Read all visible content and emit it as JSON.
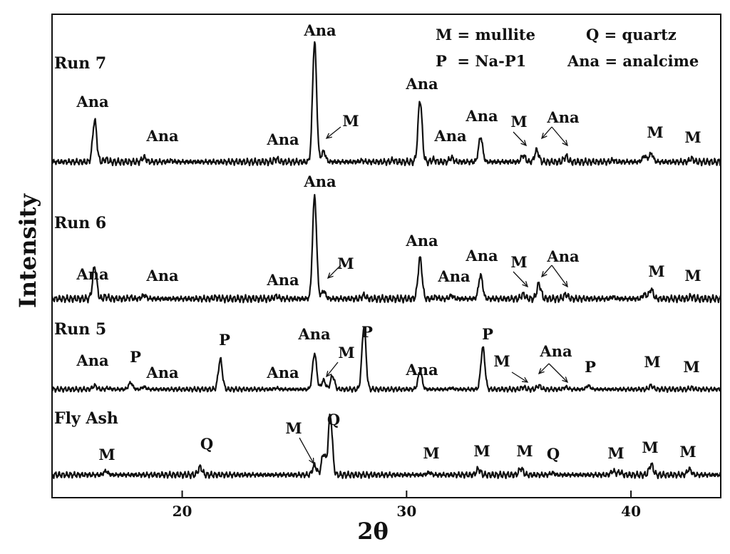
{
  "chart_data": {
    "type": "line",
    "title": "",
    "xlabel": "2θ",
    "ylabel": "Intensity",
    "xlim": [
      14.2,
      44
    ],
    "x_ticks": [
      20,
      30,
      40
    ],
    "legend": {
      "placement": "top-right",
      "entries": [
        "M = mullite",
        "Q = quartz",
        "P  = Na-P1",
        "Ana = analcime"
      ]
    },
    "series": [
      {
        "name": "Run 7",
        "peaks": [
          [
            16.1,
            1.0
          ],
          [
            16.6,
            0.06
          ],
          [
            18.3,
            0.11
          ],
          [
            19.5,
            0.03
          ],
          [
            24.2,
            0.07
          ],
          [
            25.9,
            2.9
          ],
          [
            26.3,
            0.25
          ],
          [
            28.0,
            0.03
          ],
          [
            29.4,
            0.04
          ],
          [
            30.6,
            1.5
          ],
          [
            31.2,
            0.05
          ],
          [
            32.0,
            0.1
          ],
          [
            33.3,
            0.6
          ],
          [
            35.2,
            0.16
          ],
          [
            35.8,
            0.28
          ],
          [
            37.1,
            0.13
          ],
          [
            39.2,
            0.04
          ],
          [
            40.6,
            0.14
          ],
          [
            40.9,
            0.2
          ],
          [
            42.7,
            0.08
          ]
        ],
        "labels": [
          {
            "text": "Ana",
            "x": 16.1
          },
          {
            "text": "Ana",
            "x": 18.3
          },
          {
            "text": "Ana",
            "x": 24.2
          },
          {
            "text": "Ana",
            "x": 25.9
          },
          {
            "text": "M",
            "x": 26.3
          },
          {
            "text": "Ana",
            "x": 30.6
          },
          {
            "text": "Ana",
            "x": 32.0
          },
          {
            "text": "Ana",
            "x": 33.3
          },
          {
            "text": "M",
            "x": 35.2
          },
          {
            "text": "Ana",
            "x": 35.8
          },
          {
            "text": "M",
            "x": 40.9
          },
          {
            "text": "M",
            "x": 42.7
          }
        ]
      },
      {
        "name": "Run 6",
        "peaks": [
          [
            16.1,
            0.75
          ],
          [
            16.6,
            0.05
          ],
          [
            17.7,
            0.03
          ],
          [
            18.3,
            0.08
          ],
          [
            21.5,
            0.03
          ],
          [
            24.2,
            0.06
          ],
          [
            25.9,
            2.4
          ],
          [
            26.3,
            0.18
          ],
          [
            28.1,
            0.08
          ],
          [
            30.6,
            0.95
          ],
          [
            31.3,
            0.04
          ],
          [
            32.0,
            0.07
          ],
          [
            33.3,
            0.55
          ],
          [
            35.2,
            0.1
          ],
          [
            35.9,
            0.35
          ],
          [
            37.1,
            0.1
          ],
          [
            39.2,
            0.04
          ],
          [
            40.6,
            0.1
          ],
          [
            40.9,
            0.22
          ],
          [
            42.7,
            0.05
          ]
        ],
        "labels": [
          {
            "text": "Ana",
            "x": 16.1
          },
          {
            "text": "Ana",
            "x": 18.3
          },
          {
            "text": "Ana",
            "x": 24.2
          },
          {
            "text": "Ana",
            "x": 25.9
          },
          {
            "text": "M",
            "x": 26.3
          },
          {
            "text": "Ana",
            "x": 30.6
          },
          {
            "text": "Ana",
            "x": 32.0
          },
          {
            "text": "Ana",
            "x": 33.3
          },
          {
            "text": "M",
            "x": 35.2
          },
          {
            "text": "Ana",
            "x": 35.9
          },
          {
            "text": "M",
            "x": 40.9
          },
          {
            "text": "M",
            "x": 42.7
          }
        ]
      },
      {
        "name": "Run 5",
        "peaks": [
          [
            16.1,
            0.12
          ],
          [
            16.7,
            0.04
          ],
          [
            17.7,
            0.22
          ],
          [
            18.3,
            0.08
          ],
          [
            21.7,
            1.0
          ],
          [
            24.2,
            0.04
          ],
          [
            25.9,
            1.2
          ],
          [
            26.3,
            0.3
          ],
          [
            26.7,
            0.45
          ],
          [
            28.1,
            2.1
          ],
          [
            30.6,
            0.6
          ],
          [
            32.0,
            0.04
          ],
          [
            33.4,
            1.4
          ],
          [
            35.2,
            0.07
          ],
          [
            35.9,
            0.12
          ],
          [
            37.1,
            0.07
          ],
          [
            38.1,
            0.12
          ],
          [
            40.9,
            0.12
          ],
          [
            42.7,
            0.05
          ]
        ],
        "labels": [
          {
            "text": "Ana",
            "x": 16.1
          },
          {
            "text": "P",
            "x": 17.7
          },
          {
            "text": "Ana",
            "x": 18.3
          },
          {
            "text": "P",
            "x": 21.7
          },
          {
            "text": "Ana",
            "x": 24.2
          },
          {
            "text": "Ana",
            "x": 25.9
          },
          {
            "text": "M",
            "x": 26.3
          },
          {
            "text": "P",
            "x": 28.1
          },
          {
            "text": "Ana",
            "x": 30.6
          },
          {
            "text": "P",
            "x": 33.4
          },
          {
            "text": "M",
            "x": 35.2
          },
          {
            "text": "Ana",
            "x": 35.9
          },
          {
            "text": "P",
            "x": 38.1
          },
          {
            "text": "M",
            "x": 40.9
          },
          {
            "text": "M",
            "x": 42.7
          }
        ]
      },
      {
        "name": "Fly Ash",
        "peaks": [
          [
            16.6,
            0.1
          ],
          [
            20.8,
            0.2
          ],
          [
            25.9,
            0.25
          ],
          [
            26.3,
            0.55
          ],
          [
            26.6,
            1.55
          ],
          [
            31.0,
            0.06
          ],
          [
            33.2,
            0.15
          ],
          [
            35.1,
            0.17
          ],
          [
            36.5,
            0.05
          ],
          [
            39.2,
            0.1
          ],
          [
            39.5,
            0.07
          ],
          [
            40.9,
            0.27
          ],
          [
            42.6,
            0.15
          ]
        ],
        "labels": [
          {
            "text": "M",
            "x": 16.6
          },
          {
            "text": "Q",
            "x": 20.8
          },
          {
            "text": "M",
            "x": 25.9
          },
          {
            "text": "Q",
            "x": 26.6
          },
          {
            "text": "M",
            "x": 31.0
          },
          {
            "text": "M",
            "x": 33.2
          },
          {
            "text": "M",
            "x": 35.1
          },
          {
            "text": "Q",
            "x": 36.5
          },
          {
            "text": "M",
            "x": 39.4
          },
          {
            "text": "M",
            "x": 40.9
          },
          {
            "text": "M",
            "x": 42.6
          }
        ]
      }
    ]
  }
}
